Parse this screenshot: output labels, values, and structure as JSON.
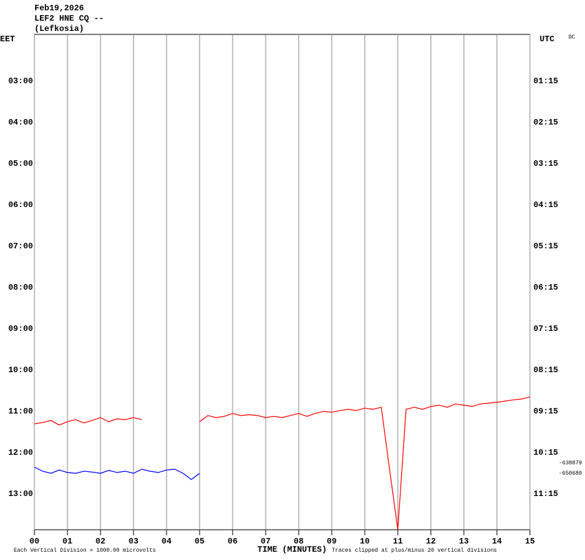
{
  "chart_data": {
    "type": "helicorder",
    "title": [
      "Feb19,2026",
      "LEF2 HNE CQ --",
      "(Lefkosia)"
    ],
    "ylabel": "EET",
    "y2label": "UTC",
    "corner_label": "DC",
    "xlabel": "TIME (MINUTES)",
    "notes": [
      "Each Vertical Division = 1000.00 microvolts",
      "Traces clipped at plus/minus 20 vertical divisions"
    ],
    "side_values": [
      {
        "value": -638879,
        "y": 12.25
      },
      {
        "value": -650680,
        "y": 12.5
      }
    ],
    "xlim": [
      0,
      15
    ],
    "xticks": [
      {
        "value": 0,
        "label": "00"
      },
      {
        "value": 1,
        "label": "01"
      },
      {
        "value": 2,
        "label": "02"
      },
      {
        "value": 3,
        "label": "03"
      },
      {
        "value": 4,
        "label": "04"
      },
      {
        "value": 5,
        "label": "05"
      },
      {
        "value": 6,
        "label": "06"
      },
      {
        "value": 7,
        "label": "07"
      },
      {
        "value": 8,
        "label": "08"
      },
      {
        "value": 9,
        "label": "09"
      },
      {
        "value": 10,
        "label": "10"
      },
      {
        "value": 11,
        "label": "11"
      },
      {
        "value": 12,
        "label": "12"
      },
      {
        "value": 13,
        "label": "13"
      },
      {
        "value": 14,
        "label": "14"
      },
      {
        "value": 15,
        "label": "15"
      }
    ],
    "ylim": [
      1.867,
      13.867
    ],
    "y_inverted": true,
    "yticks": [
      {
        "value": 3,
        "label": "03:00"
      },
      {
        "value": 4,
        "label": "04:00"
      },
      {
        "value": 5,
        "label": "05:00"
      },
      {
        "value": 6,
        "label": "06:00"
      },
      {
        "value": 7,
        "label": "07:00"
      },
      {
        "value": 8,
        "label": "08:00"
      },
      {
        "value": 9,
        "label": "09:00"
      },
      {
        "value": 10,
        "label": "10:00"
      },
      {
        "value": 11,
        "label": "11:00"
      },
      {
        "value": 12,
        "label": "12:00"
      },
      {
        "value": 13,
        "label": "13:00"
      }
    ],
    "y2lim": [
      0.117,
      12.117
    ],
    "y2ticks": [
      {
        "value": 1.25,
        "label": "01:15"
      },
      {
        "value": 2.25,
        "label": "02:15"
      },
      {
        "value": 3.25,
        "label": "03:15"
      },
      {
        "value": 4.25,
        "label": "04:15"
      },
      {
        "value": 5.25,
        "label": "05:15"
      },
      {
        "value": 6.25,
        "label": "06:15"
      },
      {
        "value": 7.25,
        "label": "07:15"
      },
      {
        "value": 8.25,
        "label": "08:15"
      },
      {
        "value": 9.25,
        "label": "09:15"
      },
      {
        "value": 10.25,
        "label": "10:15"
      },
      {
        "value": 11.25,
        "label": "11:15"
      }
    ],
    "grid": true,
    "x": [
      0,
      0.25,
      0.5,
      0.75,
      1,
      1.25,
      1.5,
      1.75,
      2,
      2.25,
      2.5,
      2.75,
      3,
      3.25,
      3.5,
      3.75,
      4,
      4.25,
      4.5,
      4.75,
      5,
      5.25,
      5.5,
      5.75,
      6,
      6.25,
      6.5,
      6.75,
      7,
      7.25,
      7.5,
      7.75,
      8,
      8.25,
      8.5,
      8.75,
      9,
      9.25,
      9.5,
      9.75,
      10,
      10.25,
      10.5,
      10.75,
      11,
      11.25,
      11.5,
      11.75,
      12,
      12.25,
      12.5,
      12.75,
      13,
      13.25,
      13.5,
      13.75,
      14,
      14.25,
      14.5,
      14.75,
      15
    ],
    "series": [
      {
        "color": "#ff0000",
        "values": [
          11.3,
          11.27,
          11.22,
          11.33,
          11.25,
          11.2,
          11.28,
          11.22,
          11.15,
          11.25,
          11.18,
          11.2,
          11.15,
          11.2,
          null,
          null,
          null,
          null,
          null,
          null,
          11.25,
          11.1,
          11.15,
          11.12,
          11.05,
          11.1,
          11.08,
          11.1,
          11.15,
          11.12,
          11.15,
          11.1,
          11.05,
          11.12,
          11.05,
          11.0,
          11.02,
          10.98,
          10.95,
          10.98,
          10.92,
          10.95,
          10.9,
          12.4,
          13.867,
          10.95,
          10.9,
          10.95,
          10.88,
          10.85,
          10.9,
          10.82,
          10.85,
          10.88,
          10.82,
          10.8,
          10.78,
          10.75,
          10.72,
          10.7,
          10.65
        ]
      },
      {
        "color": "#0000ff",
        "values": [
          12.35,
          12.45,
          12.5,
          12.42,
          12.48,
          12.5,
          12.45,
          12.47,
          12.5,
          12.43,
          12.48,
          12.45,
          12.5,
          12.4,
          12.45,
          12.48,
          12.42,
          12.4,
          12.5,
          12.65,
          12.5,
          null,
          null,
          null,
          null,
          null,
          null,
          null,
          null,
          null,
          null,
          null,
          null,
          null,
          null,
          null,
          null,
          null,
          null,
          null,
          null,
          null,
          null,
          null,
          null,
          null,
          null,
          null,
          null,
          null,
          null,
          null,
          null,
          null,
          null,
          null,
          null,
          null,
          null,
          null,
          null
        ]
      }
    ]
  }
}
